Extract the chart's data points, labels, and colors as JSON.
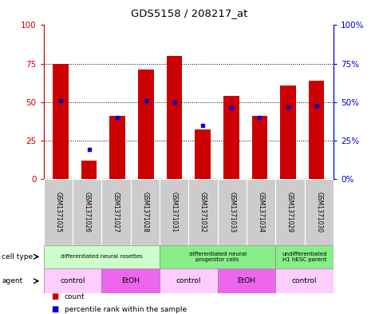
{
  "title": "GDS5158 / 208217_at",
  "samples": [
    "GSM1371025",
    "GSM1371026",
    "GSM1371027",
    "GSM1371028",
    "GSM1371031",
    "GSM1371032",
    "GSM1371033",
    "GSM1371034",
    "GSM1371029",
    "GSM1371030"
  ],
  "counts": [
    75,
    12,
    41,
    71,
    80,
    32,
    54,
    41,
    61,
    64
  ],
  "percentiles": [
    51,
    19,
    40,
    51,
    50,
    35,
    46,
    40,
    47,
    48
  ],
  "bar_color": "#cc0000",
  "percentile_color": "#0000cc",
  "ylim": [
    0,
    100
  ],
  "yticks": [
    0,
    25,
    50,
    75,
    100
  ],
  "cell_type_groups": [
    {
      "label": "differentiated neural rosettes",
      "start": 0,
      "end": 4,
      "color": "#ccffcc"
    },
    {
      "label": "differentiated neural\nprogenitor cells",
      "start": 4,
      "end": 8,
      "color": "#88ee88"
    },
    {
      "label": "undifferentiated\nH1 hESC parent",
      "start": 8,
      "end": 10,
      "color": "#88ee88"
    }
  ],
  "agent_groups": [
    {
      "label": "control",
      "start": 0,
      "end": 2,
      "color": "#ffccff"
    },
    {
      "label": "EtOH",
      "start": 2,
      "end": 4,
      "color": "#ee66ee"
    },
    {
      "label": "control",
      "start": 4,
      "end": 6,
      "color": "#ffccff"
    },
    {
      "label": "EtOH",
      "start": 6,
      "end": 8,
      "color": "#ee66ee"
    },
    {
      "label": "control",
      "start": 8,
      "end": 10,
      "color": "#ffccff"
    }
  ],
  "legend_count_color": "#cc0000",
  "legend_percentile_color": "#0000cc",
  "bg_color": "#ffffff",
  "sample_bg_color": "#cccccc",
  "left_axis_color": "#cc0000",
  "right_axis_color": "#0000cc"
}
